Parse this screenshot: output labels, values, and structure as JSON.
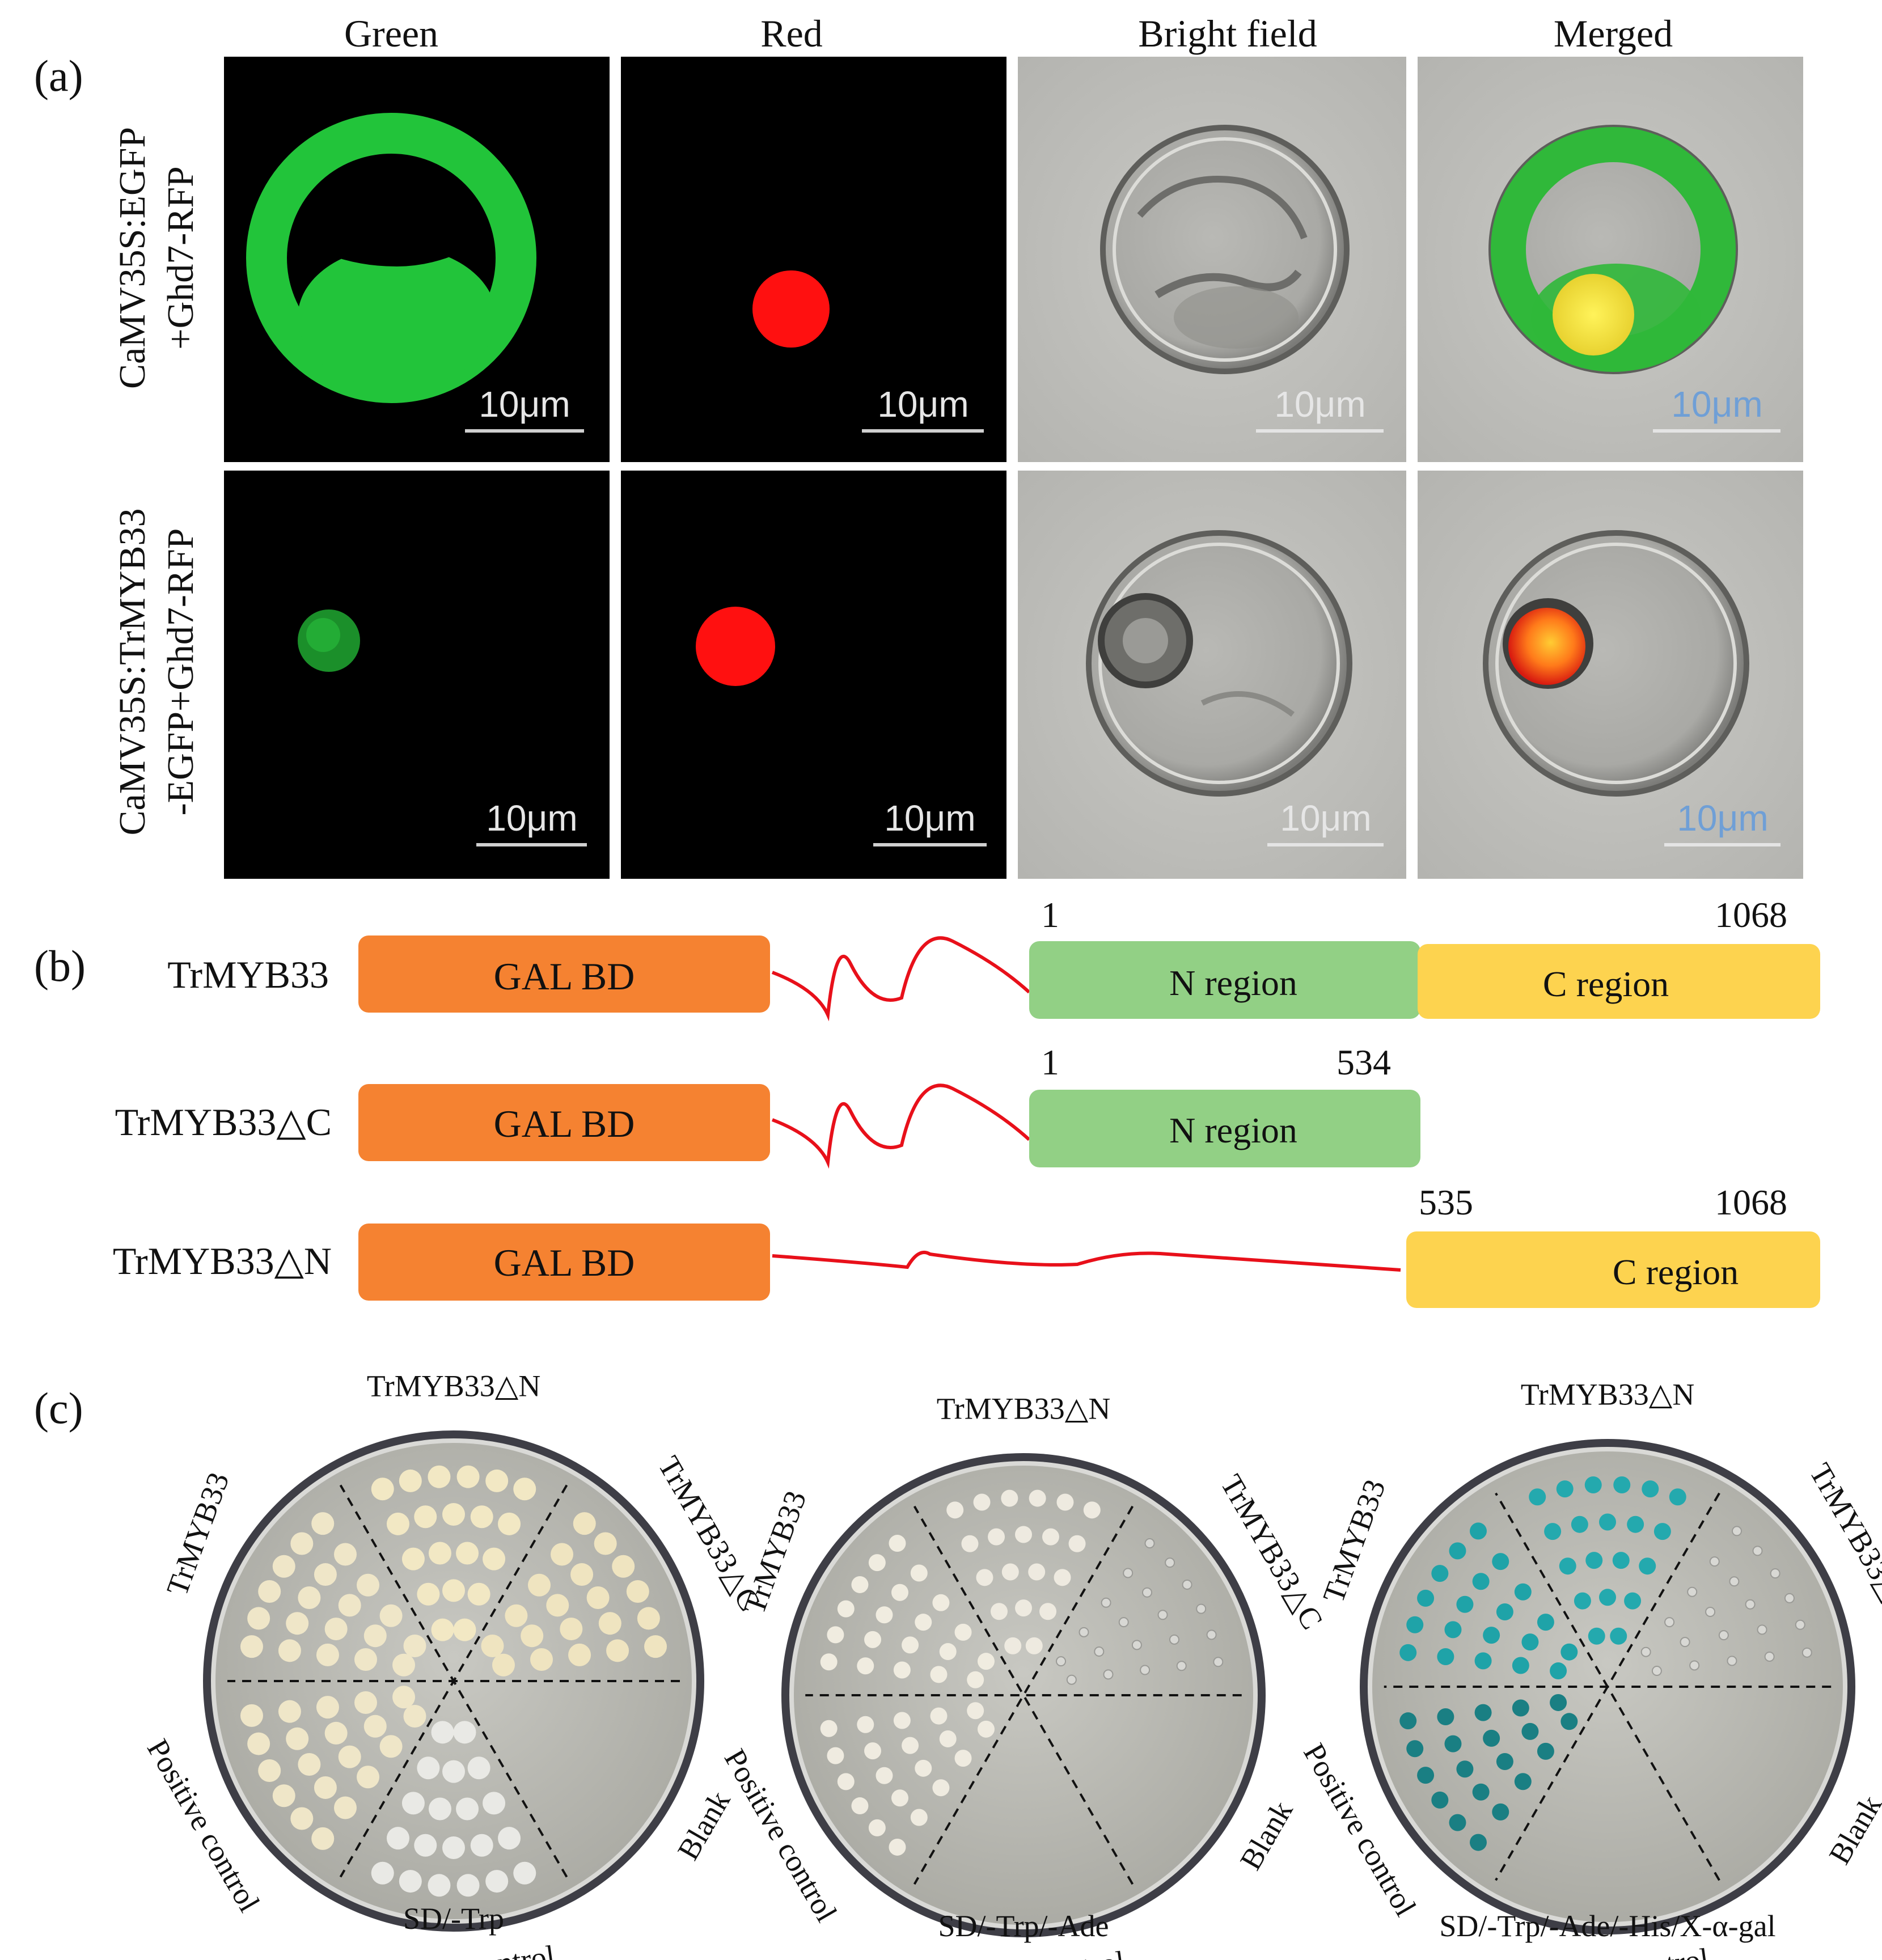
{
  "panel_a": {
    "label": "(a)",
    "columns": [
      "Green",
      "Red",
      "Bright field",
      "Merged"
    ],
    "rows": [
      {
        "label_line1": "CaMV35S:EGFP",
        "label_line2": "+Ghd7-RFP"
      },
      {
        "label_line1": "CaMV35S:TrMYB33",
        "label_line2": "-EGFP+Ghd7-RFP"
      }
    ],
    "scale_bar": "10μm"
  },
  "panel_b": {
    "label": "(b)",
    "bd_label": "GAL BD",
    "constructs": [
      {
        "name": "TrMYB33",
        "regions": [
          "N region",
          "C region"
        ],
        "numbers": [
          "1",
          "1068"
        ]
      },
      {
        "name": "TrMYB33△C",
        "regions": [
          "N region"
        ],
        "numbers": [
          "1",
          "534"
        ]
      },
      {
        "name": "TrMYB33△N",
        "regions": [
          "C region"
        ],
        "numbers": [
          "535",
          "1068"
        ]
      }
    ]
  },
  "panel_c": {
    "label": "(c)",
    "sector_labels": {
      "top_left": "TrMYB33",
      "top": "TrMYB33△N",
      "top_right": "TrMYB33△C",
      "bottom_left": "Positive control",
      "bottom": "Negative control",
      "bottom_right": "Blank"
    },
    "plates": [
      {
        "caption": "SD/-Trp"
      },
      {
        "caption": "SD/-Trp/-Ade"
      },
      {
        "caption": "SD/-Trp/-Ade/-His/X-α-gal"
      }
    ]
  },
  "colors": {
    "gal_bd": "#f58231",
    "n_region": "#92d085",
    "c_region": "#fdd34f",
    "linker": "#e8101a",
    "gfp": "#22c43a",
    "rfp": "#ff1010",
    "x_gal_blue": "#1a9aa0"
  }
}
